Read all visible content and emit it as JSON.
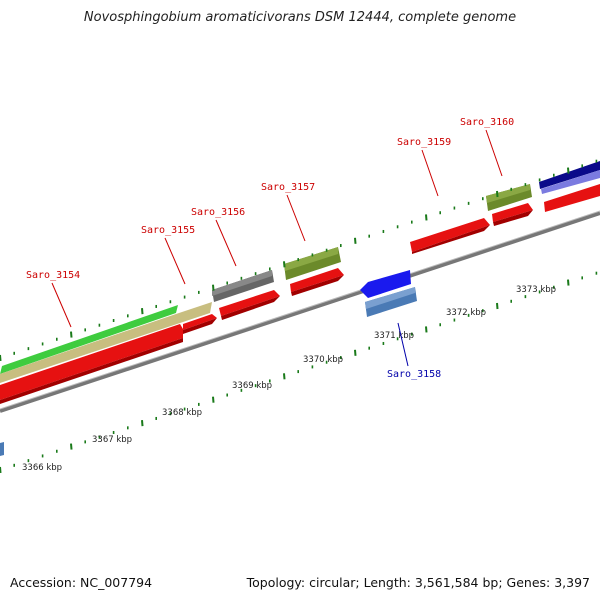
{
  "header": {
    "title": "Novosphingobium aromaticivorans DSM 12444, complete genome"
  },
  "footer": {
    "accession": "Accession: NC_007794",
    "topology": "Topology: circular; Length: 3,561,584 bp; Genes: 3,397"
  },
  "ruler": [
    {
      "label": "3366 kbp"
    },
    {
      "label": "3367 kbp"
    },
    {
      "label": "3368 kbp"
    },
    {
      "label": "3369 kbp"
    },
    {
      "label": "3370 kbp"
    },
    {
      "label": "3371 kbp"
    },
    {
      "label": "3372 kbp"
    },
    {
      "label": "3373 kbp"
    }
  ],
  "genes": [
    {
      "name": "Saro_3154",
      "strand": "+",
      "color": "#cc0000"
    },
    {
      "name": "Saro_3155",
      "strand": "+",
      "color": "#cc0000"
    },
    {
      "name": "Saro_3156",
      "strand": "+",
      "color": "#cc0000"
    },
    {
      "name": "Saro_3157",
      "strand": "+",
      "color": "#cc0000"
    },
    {
      "name": "Saro_3158",
      "strand": "-",
      "color": "#0000aa"
    },
    {
      "name": "Saro_3159",
      "strand": "+",
      "color": "#cc0000"
    },
    {
      "name": "Saro_3160",
      "strand": "+",
      "color": "#cc0000"
    }
  ]
}
